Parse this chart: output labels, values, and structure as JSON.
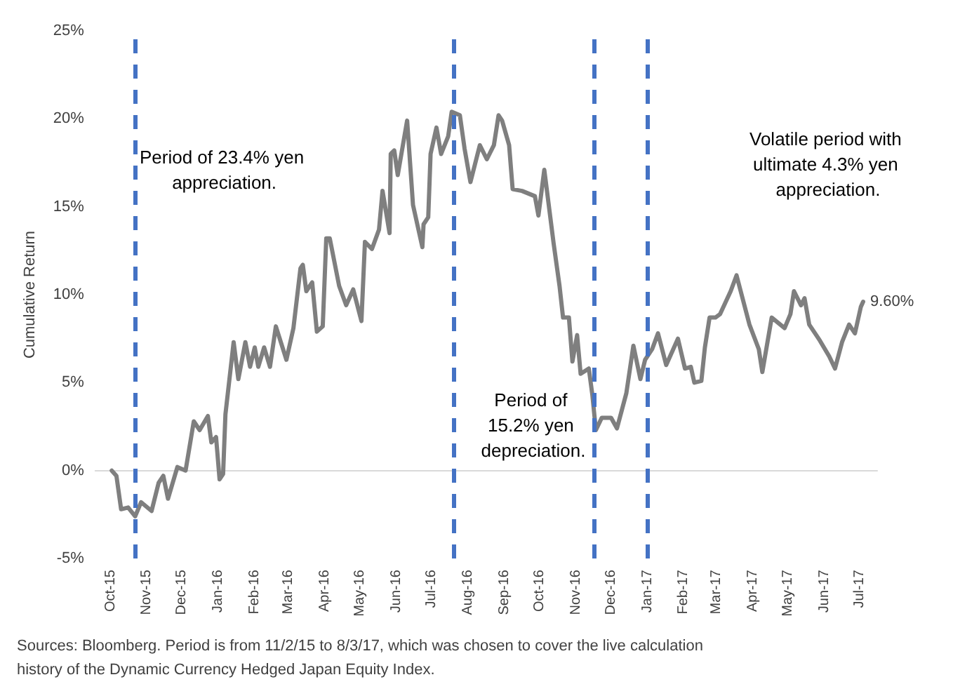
{
  "chart_data": {
    "type": "line",
    "ylabel": "Cumulative Return",
    "x": [
      "2015-10-02",
      "2015-10-06",
      "2015-10-10",
      "2015-10-16",
      "2015-10-22",
      "2015-10-27",
      "2015-11-05",
      "2015-11-11",
      "2015-11-15",
      "2015-11-19",
      "2015-11-27",
      "2015-12-04",
      "2015-12-11",
      "2015-12-16",
      "2015-12-23",
      "2015-12-26",
      "2015-12-30",
      "2016-01-02",
      "2016-01-05",
      "2016-01-07",
      "2016-01-14",
      "2016-01-18",
      "2016-01-24",
      "2016-01-28",
      "2016-02-01",
      "2016-02-04",
      "2016-02-09",
      "2016-02-14",
      "2016-02-19",
      "2016-02-28",
      "2016-03-05",
      "2016-03-11",
      "2016-03-13",
      "2016-03-16",
      "2016-03-21",
      "2016-03-25",
      "2016-03-30",
      "2016-04-02",
      "2016-04-05",
      "2016-04-13",
      "2016-04-19",
      "2016-04-25",
      "2016-05-02",
      "2016-05-05",
      "2016-05-11",
      "2016-05-17",
      "2016-05-20",
      "2016-05-26",
      "2016-05-27",
      "2016-05-30",
      "2016-06-02",
      "2016-06-10",
      "2016-06-15",
      "2016-06-23",
      "2016-06-24",
      "2016-06-28",
      "2016-06-30",
      "2016-07-05",
      "2016-07-09",
      "2016-07-15",
      "2016-07-18",
      "2016-07-25",
      "2016-07-29",
      "2016-08-03",
      "2016-08-11",
      "2016-08-17",
      "2016-08-23",
      "2016-08-27",
      "2016-08-30",
      "2016-09-05",
      "2016-09-08",
      "2016-09-16",
      "2016-09-27",
      "2016-09-30",
      "2016-10-05",
      "2016-10-13",
      "2016-10-18",
      "2016-10-21",
      "2016-10-26",
      "2016-10-29",
      "2016-11-02",
      "2016-11-05",
      "2016-11-12",
      "2016-11-15",
      "2016-11-18",
      "2016-11-23",
      "2016-12-01",
      "2016-12-06",
      "2016-12-14",
      "2016-12-20",
      "2016-12-26",
      "2016-12-30",
      "2017-01-05",
      "2017-01-10",
      "2017-01-17",
      "2017-01-27",
      "2017-02-02",
      "2017-02-07",
      "2017-02-10",
      "2017-02-16",
      "2017-02-19",
      "2017-02-23",
      "2017-02-28",
      "2017-03-04",
      "2017-03-13",
      "2017-03-18",
      "2017-03-29",
      "2017-04-06",
      "2017-04-09",
      "2017-04-17",
      "2017-04-28",
      "2017-05-03",
      "2017-05-06",
      "2017-05-12",
      "2017-05-15",
      "2017-05-19",
      "2017-05-28",
      "2017-06-05",
      "2017-06-10",
      "2017-06-16",
      "2017-06-22",
      "2017-06-27",
      "2017-07-02",
      "2017-07-04"
    ],
    "series": [
      {
        "color": "#7f7f7f",
        "values": [
          0,
          -0.3,
          -2.2,
          -2.1,
          -2.6,
          -1.8,
          -2.3,
          -0.7,
          -0.3,
          -1.6,
          0.2,
          0,
          2.8,
          2.3,
          3.1,
          1.6,
          1.9,
          -0.5,
          -0.2,
          3.2,
          7.3,
          5.2,
          7.3,
          5.9,
          7.0,
          5.9,
          7.0,
          5.9,
          8.2,
          6.3,
          8.1,
          11.5,
          11.7,
          10.2,
          10.7,
          7.9,
          8.2,
          13.2,
          13.2,
          10.5,
          9.4,
          10.3,
          8.5,
          13.0,
          12.6,
          13.7,
          15.9,
          13.5,
          18.0,
          18.2,
          16.8,
          19.9,
          15.1,
          12.7,
          14.0,
          14.4,
          18.0,
          19.5,
          18.0,
          19.0,
          20.4,
          20.2,
          18.3,
          16.4,
          18.5,
          17.7,
          18.5,
          20.2,
          19.9,
          18.5,
          16.0,
          15.9,
          15.6,
          14.5,
          17.1,
          12.9,
          10.5,
          8.7,
          8.7,
          6.2,
          7.7,
          5.5,
          5.8,
          4.3,
          2.3,
          3.0,
          3.0,
          2.4,
          4.4,
          7.1,
          5.2,
          6.3,
          6.9,
          7.8,
          6.0,
          7.5,
          5.8,
          5.9,
          5.0,
          5.1,
          7.0,
          8.7,
          8.7,
          8.9,
          10.2,
          11.1,
          8.3,
          6.9,
          5.6,
          8.7,
          8.1,
          8.9,
          10.2,
          9.4,
          9.8,
          8.3,
          7.4,
          6.5,
          5.8,
          7.3,
          8.3,
          7.8,
          9.3,
          9.6
        ],
        "value_labels": [
          null,
          null,
          null,
          null,
          null,
          null,
          null,
          null,
          null,
          null,
          null,
          null,
          null,
          null,
          null,
          null,
          null,
          null,
          null,
          null,
          null,
          null,
          null,
          null,
          null,
          null,
          null,
          null,
          null,
          null,
          null,
          null,
          null,
          null,
          null,
          null,
          null,
          null,
          null,
          null,
          null,
          null,
          null,
          null,
          null,
          null,
          null,
          null,
          null,
          null,
          null,
          null,
          null,
          null,
          null,
          null,
          null,
          null,
          null,
          null,
          null,
          null,
          null,
          null,
          null,
          null,
          null,
          null,
          null,
          null,
          null,
          null,
          null,
          null,
          null,
          null,
          null,
          null,
          null,
          null,
          null,
          null,
          null,
          null,
          null,
          null,
          null,
          null,
          null,
          null,
          null,
          null,
          null,
          null,
          null,
          null,
          null,
          null,
          null,
          null,
          null,
          null,
          null,
          null,
          null,
          null,
          null,
          null,
          null,
          null,
          null,
          null,
          null,
          null,
          null,
          null,
          null,
          null,
          null,
          null,
          null,
          null,
          null,
          "9.60%"
        ]
      }
    ],
    "xlim": [
      "2015-09-18",
      "2017-07-16"
    ],
    "xticks": [
      {
        "value": "2015-10-01",
        "label": "Oct-15"
      },
      {
        "value": "2015-11-01",
        "label": "Nov-15"
      },
      {
        "value": "2015-12-01",
        "label": "Dec-15"
      },
      {
        "value": "2016-01-01",
        "label": "Jan-16"
      },
      {
        "value": "2016-02-01",
        "label": "Feb-16"
      },
      {
        "value": "2016-03-01",
        "label": "Mar-16"
      },
      {
        "value": "2016-04-01",
        "label": "Apr-16"
      },
      {
        "value": "2016-05-01",
        "label": "May-16"
      },
      {
        "value": "2016-06-01",
        "label": "Jun-16"
      },
      {
        "value": "2016-07-01",
        "label": "Jul-16"
      },
      {
        "value": "2016-08-01",
        "label": "Aug-16"
      },
      {
        "value": "2016-09-01",
        "label": "Sep-16"
      },
      {
        "value": "2016-10-01",
        "label": "Oct-16"
      },
      {
        "value": "2016-11-01",
        "label": "Nov-16"
      },
      {
        "value": "2016-12-01",
        "label": "Dec-16"
      },
      {
        "value": "2017-01-01",
        "label": "Jan-17"
      },
      {
        "value": "2017-02-01",
        "label": "Feb-17"
      },
      {
        "value": "2017-03-01",
        "label": "Mar-17"
      },
      {
        "value": "2017-04-01",
        "label": "Apr-17"
      },
      {
        "value": "2017-05-01",
        "label": "May-17"
      },
      {
        "value": "2017-06-01",
        "label": "Jun-17"
      },
      {
        "value": "2017-07-01",
        "label": "Jul-17"
      }
    ],
    "ylim": [
      -5,
      25
    ],
    "yticks": [
      {
        "value": -5,
        "label": "-5%"
      },
      {
        "value": 0,
        "label": "0%"
      },
      {
        "value": 5,
        "label": "5%"
      },
      {
        "value": 10,
        "label": "10%"
      },
      {
        "value": 15,
        "label": "15%"
      },
      {
        "value": 20,
        "label": "20%"
      },
      {
        "value": 25,
        "label": "25%"
      }
    ],
    "ref_lines": [
      {
        "axis": "x",
        "value": "2015-10-22",
        "color": "#4472c4",
        "line_style": "dashed"
      },
      {
        "axis": "x",
        "value": "2016-07-20",
        "color": "#4472c4",
        "line_style": "dashed"
      },
      {
        "axis": "x",
        "value": "2016-11-17",
        "color": "#4472c4",
        "line_style": "dashed"
      },
      {
        "axis": "x",
        "value": "2017-01-01",
        "color": "#4472c4",
        "line_style": "dashed"
      }
    ],
    "annotations": [
      "Period of 23.4% yen appreciation.",
      "Period of 15.2% yen depreciation.",
      "Volatile period with ultimate 4.3% yen appreciation.",
      "Sources: Bloomberg. Period is from 11/2/15 to 8/3/17, which was chosen to cover the live calculation history of the Dynamic Currency Hedged Japan Equity Index."
    ],
    "grid": false,
    "marker": "none",
    "line_style": "solid"
  }
}
